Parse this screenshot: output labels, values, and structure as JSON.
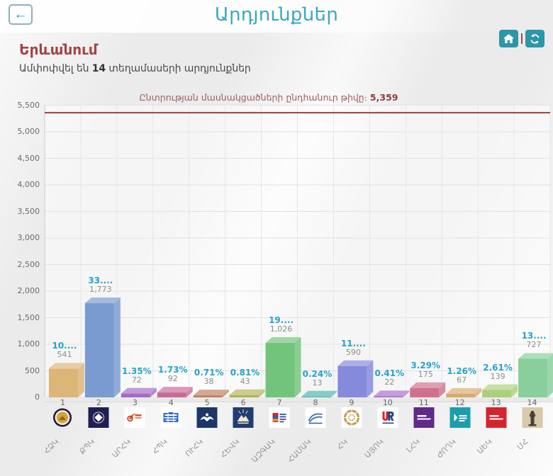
{
  "header": {
    "back_icon": "←",
    "title": "Արդյունքներ"
  },
  "region": {
    "name": "Երևանում",
    "summary_prefix": "Ամփոփվել են",
    "summary_count": "14",
    "summary_suffix": "տեղամասերի արդյունքներ"
  },
  "chart_data": {
    "type": "bar",
    "title": "Ընտրության մասնակցածների ընդհանուր թիվը։",
    "total_label": "5,359",
    "total_value": 5359,
    "xlabel": "",
    "ylabel": "",
    "ylim": [
      0,
      5500
    ],
    "ytick_step": 500,
    "grid": true,
    "legend": "none",
    "reference_line": {
      "value": 5359,
      "color": "#9e3f3f"
    },
    "categories": [
      "1",
      "2",
      "3",
      "4",
      "5",
      "6",
      "7",
      "8",
      "9",
      "10",
      "11",
      "12",
      "13",
      "14"
    ],
    "series": [
      {
        "name": "votes",
        "values": [
          541,
          1773,
          72,
          92,
          38,
          43,
          1026,
          13,
          590,
          22,
          175,
          67,
          139,
          727
        ]
      }
    ],
    "percent_labels": [
      "10....",
      "33....",
      "1.35%",
      "1.73%",
      "0.71%",
      "0.81%",
      "19....",
      "0.24%",
      "11....",
      "0.41%",
      "3.29%",
      "1.26%",
      "2.61%",
      "13...."
    ],
    "count_labels": [
      "541",
      "1,773",
      "72",
      "92",
      "38",
      "43",
      "1,026",
      "13",
      "590",
      "22",
      "175",
      "67",
      "139",
      "727"
    ],
    "party_abbrs": [
      "ՀՁԿ",
      "ՔՊԿ",
      "ԱՐՀԿ",
      "ՀՊԿ",
      "ՈՒՀԿ",
      "ՀԵՎԿ",
      "ԱԶԳԱԿ",
      "ՀԱՄԱԿ",
      "ՀԿ",
      "ԱՅՈԿ",
      "ԼՀԿ",
      "ԺՈՂԿ",
      "ԱԵԿ",
      "ՄՀ"
    ],
    "bar_colors": [
      "#d9af6e",
      "#6e92cc",
      "#9c60c2",
      "#c45e90",
      "#bb744e",
      "#a8ae4a",
      "#67bf70",
      "#3fada6",
      "#7b80d8",
      "#a263c6",
      "#cb6584",
      "#d7a263",
      "#a5cb6e",
      "#7ecb93"
    ],
    "logos": [
      {
        "name": "party-1-logo",
        "type": "circle-emblem",
        "bg": "#ffffff",
        "ring": "#1e1640",
        "center": "#d2a23e"
      },
      {
        "name": "party-2-logo",
        "type": "badge-diamond",
        "bg": "#1f1f55",
        "fg": "#ffffff"
      },
      {
        "name": "party-3-logo",
        "type": "swoosh",
        "bg": "#ffffff",
        "fg": "#e06a1f",
        "accent": "#c23b2a"
      },
      {
        "name": "party-4-logo",
        "type": "glitch-text",
        "bg": "#ffffff",
        "fg": "#2f6bc4"
      },
      {
        "name": "party-5-logo",
        "type": "badge-eagle",
        "bg": "#1c3668",
        "fg": "#ffffff"
      },
      {
        "name": "party-6-logo",
        "type": "badge-mountain",
        "bg": "#203d73",
        "fg": "#f0e6c8"
      },
      {
        "name": "party-7-logo",
        "type": "book",
        "bg": "#ffffff",
        "fg": "#3b4f8f",
        "accent": "#d8232f"
      },
      {
        "name": "party-8-logo",
        "type": "bridge",
        "bg": "#ffffff",
        "fg": "#2b5fa8"
      },
      {
        "name": "party-9-logo",
        "type": "knot",
        "bg": "#ffffff",
        "fg": "#c49a4a"
      },
      {
        "name": "party-10-logo",
        "type": "ur",
        "bg": "#ffffff",
        "fg": "#d8232f",
        "accent": "#27477e"
      },
      {
        "name": "party-11-logo",
        "type": "text-badge",
        "bg": "#5f2a8a",
        "fg": "#ffffff"
      },
      {
        "name": "party-12-logo",
        "type": "chevron-badge",
        "bg": "#1b9dae",
        "fg": "#ffffff"
      },
      {
        "name": "party-13-logo",
        "type": "text-badge",
        "bg": "#d8232f",
        "fg": "#ffffff"
      },
      {
        "name": "party-14-logo",
        "type": "statue",
        "bg": "#d8c9ac",
        "fg": "#4a4238"
      }
    ]
  }
}
